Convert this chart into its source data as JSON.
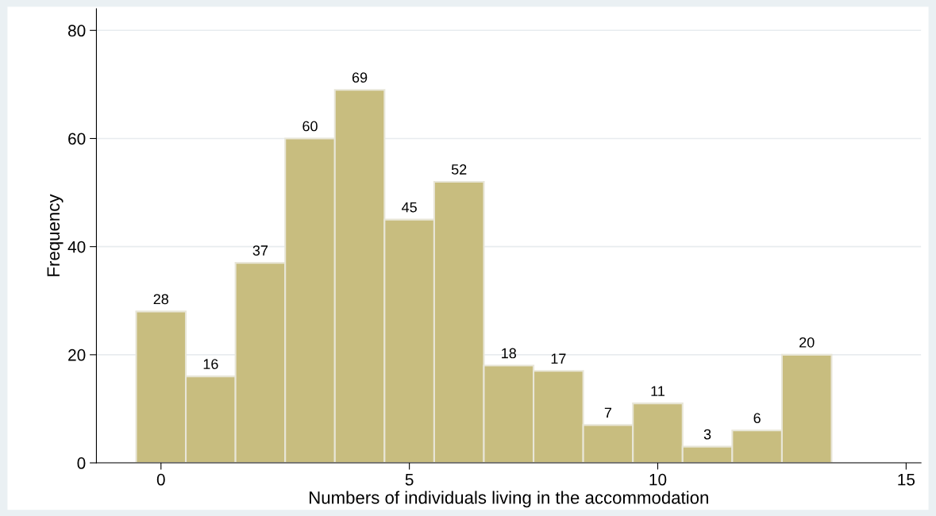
{
  "chart_data": {
    "type": "histogram",
    "xlabel": "Numbers of individuals living in the accommodation",
    "ylabel": "Frequency",
    "bins": [
      -0.5,
      0.5,
      1.5,
      2.5,
      3.5,
      4.5,
      5.5,
      6.5,
      7.5,
      8.5,
      9.5,
      10.5,
      11.5,
      12.5,
      13.5
    ],
    "values": [
      28,
      16,
      37,
      60,
      69,
      45,
      52,
      18,
      17,
      7,
      11,
      3,
      6,
      20
    ],
    "color": "#c8bd7f",
    "xlim": [
      -1.3,
      15.3
    ],
    "xticks": [
      0,
      5,
      10,
      15
    ],
    "ylim": [
      0,
      84
    ],
    "yticks": [
      0,
      20,
      40,
      60,
      80
    ],
    "grid": "y",
    "data_labels": true
  }
}
